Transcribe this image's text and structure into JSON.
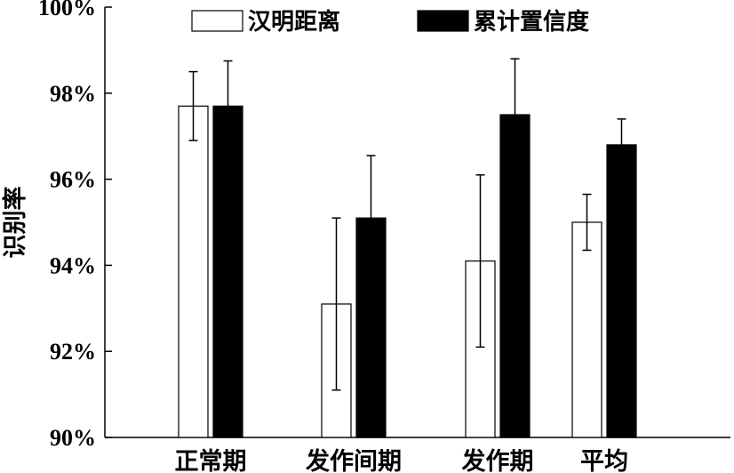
{
  "chart_data": {
    "type": "bar",
    "ylabel": "识别率",
    "xlabel": "",
    "ylim": [
      90,
      100
    ],
    "yticks": [
      90,
      92,
      94,
      96,
      98,
      100
    ],
    "ytick_labels": [
      "90%",
      "92%",
      "94%",
      "96%",
      "98%",
      "100%"
    ],
    "categories": [
      "正常期",
      "发作间期",
      "发作期",
      "平均"
    ],
    "series": [
      {
        "name": "汉明距离",
        "fill": "#ffffff",
        "values": [
          97.7,
          93.1,
          94.1,
          95.0
        ],
        "errors": [
          0.8,
          2.0,
          2.0,
          0.65
        ]
      },
      {
        "name": "累计置信度",
        "fill": "#000000",
        "values": [
          97.7,
          95.1,
          97.5,
          96.8
        ],
        "errors": [
          1.05,
          1.45,
          1.3,
          0.6
        ]
      }
    ],
    "legend_position": "top",
    "grid": false
  }
}
